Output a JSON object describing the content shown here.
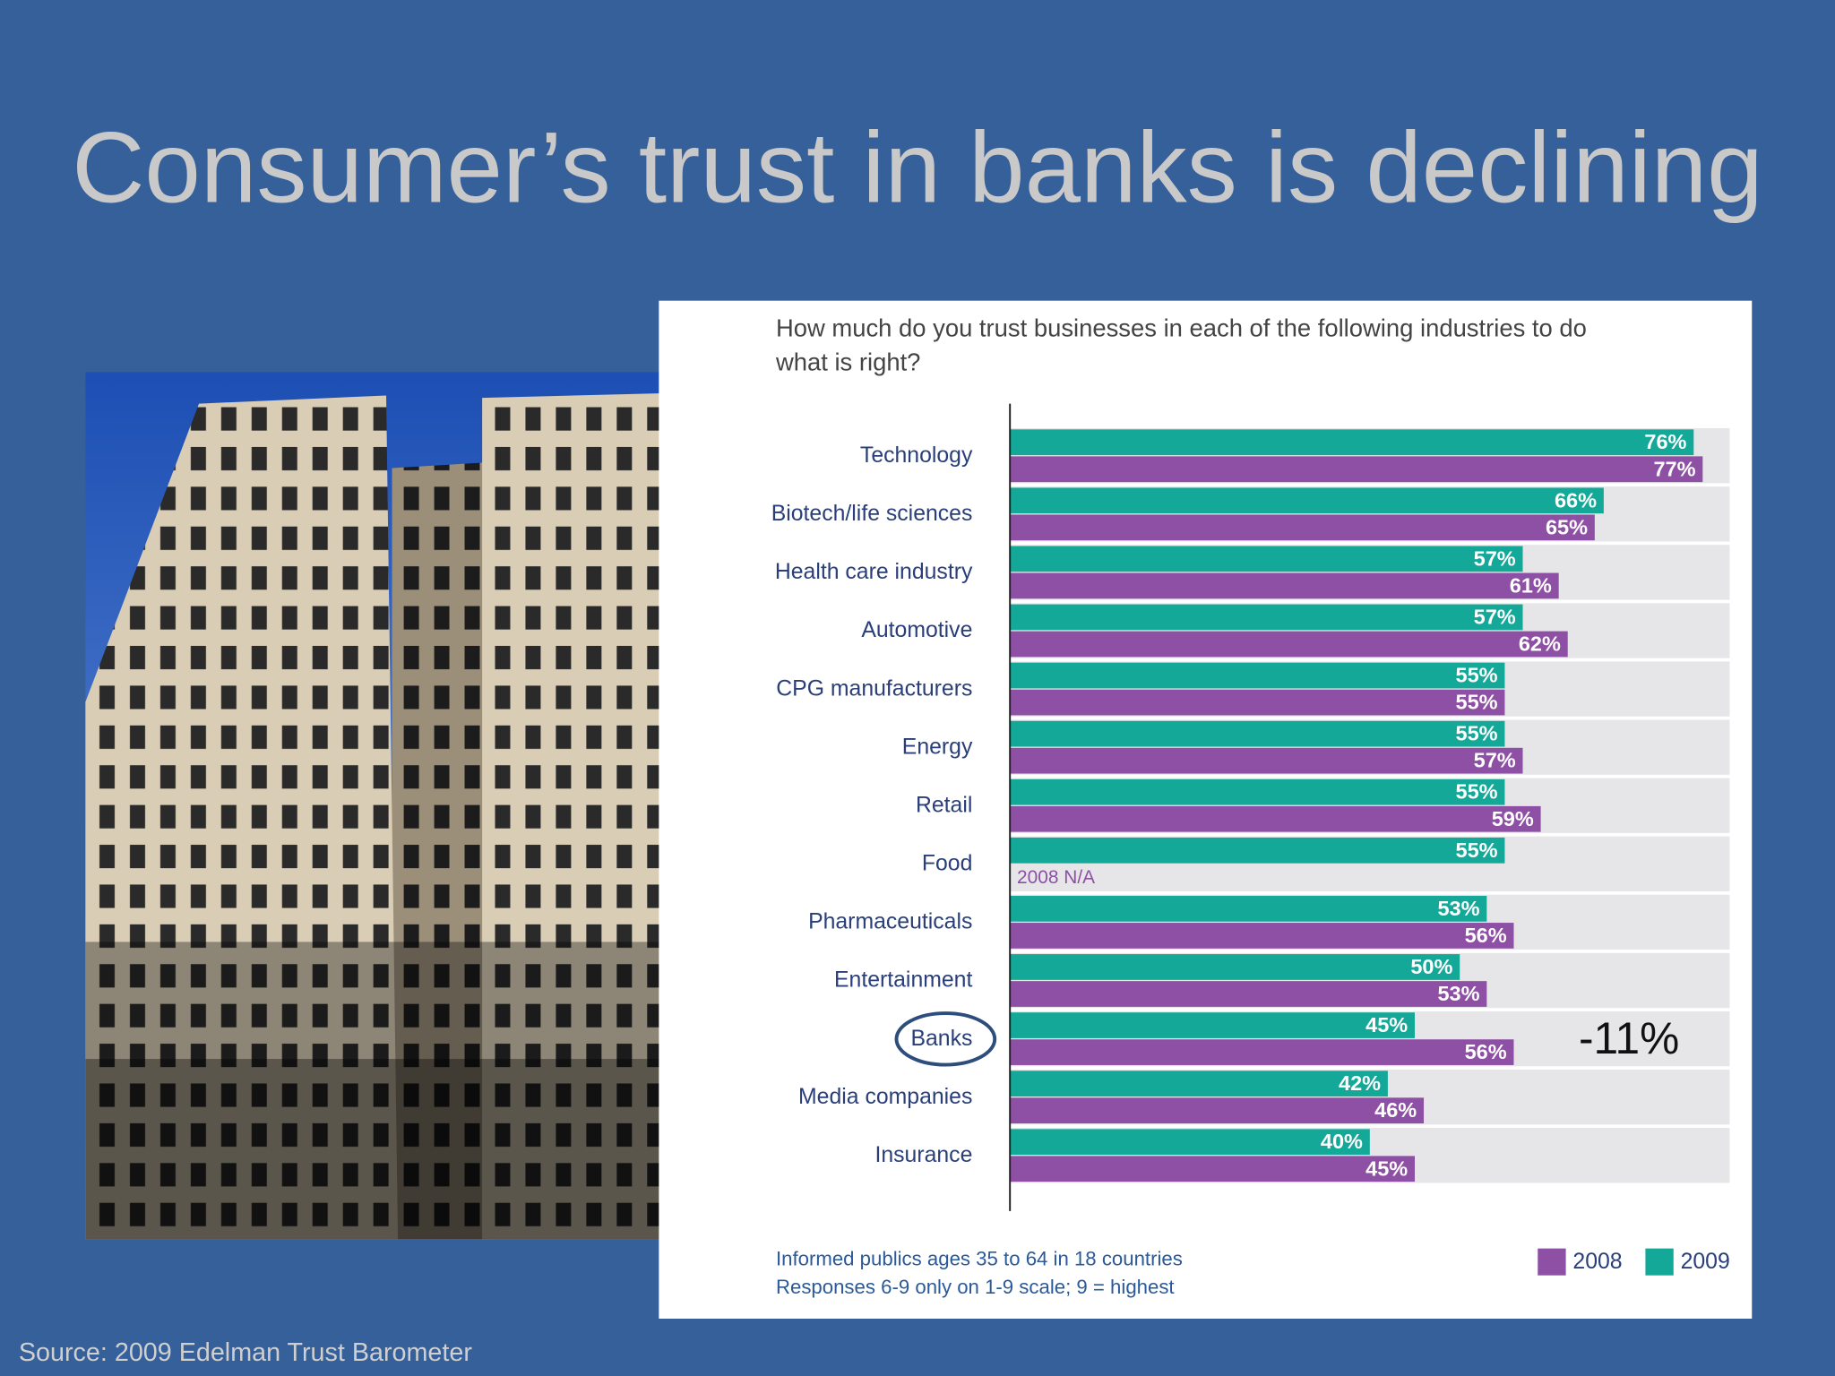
{
  "slide": {
    "title": "Consumer’s trust in banks is declining",
    "source": "Source: 2009 Edelman Trust Barometer"
  },
  "chart_data": {
    "type": "hbar",
    "title_lines": [
      "How much do you trust businesses in each of the following industries to do",
      "what is right?"
    ],
    "categories": [
      "Technology",
      "Biotech/life sciences",
      "Health care industry",
      "Automotive",
      "CPG manufacturers",
      "Energy",
      "Retail",
      "Food",
      "Pharmaceuticals",
      "Entertainment",
      "Banks",
      "Media companies",
      "Insurance"
    ],
    "series": [
      {
        "name": "2009",
        "color": "#14a898",
        "values": [
          76,
          66,
          57,
          57,
          55,
          55,
          55,
          55,
          53,
          50,
          45,
          42,
          40
        ],
        "value_labels": [
          "76%",
          "66%",
          "57%",
          "57%",
          "55%",
          "55%",
          "55%",
          "55%",
          "53%",
          "50%",
          "45%",
          "42%",
          "40%"
        ]
      },
      {
        "name": "2008",
        "color": "#8e50a4",
        "values": [
          77,
          65,
          61,
          62,
          55,
          57,
          59,
          null,
          56,
          53,
          56,
          46,
          45
        ],
        "value_labels": [
          "77%",
          "65%",
          "61%",
          "62%",
          "55%",
          "57%",
          "59%",
          null,
          "56%",
          "53%",
          "56%",
          "46%",
          "45%"
        ]
      }
    ],
    "xlim": [
      0,
      80
    ],
    "missing_note": "2008 N/A",
    "annotation": "-11%",
    "footnotes": [
      "Informed publics ages 35 to 64 in 18 countries",
      "Responses 6-9 only on 1-9 scale; 9 = highest"
    ]
  }
}
